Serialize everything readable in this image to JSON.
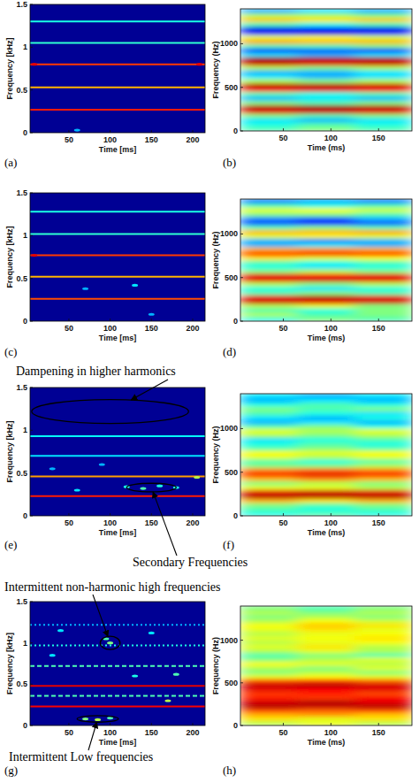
{
  "chart_data": [
    {
      "type": "spectrogram",
      "title": "(a)",
      "x_label": "Time [ms]",
      "y_label": "Frequency [kHz]",
      "xlim": [
        3,
        215
      ],
      "ylim": [
        0,
        1.5
      ],
      "xticks": [
        50,
        100,
        150,
        200
      ],
      "yticks": [
        0,
        0.5,
        1,
        1.5
      ],
      "clim": [
        0,
        1
      ],
      "background": 0.02,
      "bands": [
        {
          "frequency": 0.27,
          "intensity": 0.85
        },
        {
          "frequency": 0.53,
          "intensity": 0.7
        },
        {
          "frequency": 0.8,
          "intensity": 0.82
        },
        {
          "frequency": 1.05,
          "intensity": 0.42
        },
        {
          "frequency": 1.3,
          "intensity": 0.4
        }
      ],
      "spots": [
        {
          "time": 8,
          "frequency": 0.8,
          "intensity": 0.9
        },
        {
          "time": 208,
          "frequency": 0.8,
          "intensity": 0.9
        },
        {
          "time": 60,
          "frequency": 0.03,
          "intensity": 0.3
        }
      ]
    },
    {
      "type": "heatmap",
      "title": "(b)",
      "x_label": "Time (ms)",
      "y_label": "Frequency (Hz)",
      "xlim": [
        5,
        185
      ],
      "ylim": [
        0,
        1400
      ],
      "xticks": [
        50,
        100,
        150
      ],
      "yticks": [
        0,
        500,
        1000
      ],
      "clim": [
        0,
        1
      ],
      "x": [
        35,
        95,
        155
      ],
      "y": [
        25,
        75,
        125,
        175,
        225,
        275,
        325,
        375,
        425,
        475,
        525,
        575,
        625,
        675,
        725,
        775,
        825,
        875,
        925,
        975,
        1025,
        1075,
        1125,
        1175,
        1225,
        1275,
        1325,
        1375
      ],
      "cells": [
        [
          0.45,
          0.5,
          0.45
        ],
        [
          0.4,
          0.45,
          0.4
        ],
        [
          0.35,
          0.3,
          0.35
        ],
        [
          0.5,
          0.45,
          0.5
        ],
        [
          0.9,
          0.92,
          0.9
        ],
        [
          0.95,
          0.97,
          0.95
        ],
        [
          0.5,
          0.45,
          0.5
        ],
        [
          0.3,
          0.35,
          0.3
        ],
        [
          0.45,
          0.4,
          0.45
        ],
        [
          0.88,
          0.9,
          0.88
        ],
        [
          0.95,
          0.95,
          0.93
        ],
        [
          0.55,
          0.5,
          0.55
        ],
        [
          0.35,
          0.3,
          0.35
        ],
        [
          0.3,
          0.3,
          0.35
        ],
        [
          0.55,
          0.5,
          0.55
        ],
        [
          0.92,
          0.9,
          0.92
        ],
        [
          0.97,
          0.95,
          0.95
        ],
        [
          0.35,
          0.3,
          0.35
        ],
        [
          0.15,
          0.2,
          0.15
        ],
        [
          0.45,
          0.45,
          0.5
        ],
        [
          0.72,
          0.7,
          0.7
        ],
        [
          0.6,
          0.62,
          0.58
        ],
        [
          0.15,
          0.1,
          0.15
        ],
        [
          0.1,
          0.15,
          0.1
        ],
        [
          0.45,
          0.4,
          0.45
        ],
        [
          0.68,
          0.65,
          0.68
        ],
        [
          0.55,
          0.55,
          0.5
        ],
        [
          0.3,
          0.35,
          0.3
        ]
      ]
    },
    {
      "type": "spectrogram",
      "title": "(c)",
      "x_label": "Time [ms]",
      "y_label": "Frequency [kHz]",
      "xlim": [
        3,
        215
      ],
      "ylim": [
        0,
        1.5
      ],
      "xticks": [
        50,
        100,
        150,
        200
      ],
      "yticks": [
        0,
        0.5,
        1,
        1.5
      ],
      "clim": [
        0,
        1
      ],
      "background": 0.02,
      "bands": [
        {
          "frequency": 0.26,
          "intensity": 0.8
        },
        {
          "frequency": 0.52,
          "intensity": 0.7
        },
        {
          "frequency": 0.77,
          "intensity": 0.82
        },
        {
          "frequency": 1.02,
          "intensity": 0.42
        },
        {
          "frequency": 1.28,
          "intensity": 0.4
        }
      ],
      "spots": [
        {
          "time": 130,
          "frequency": 0.42,
          "intensity": 0.35
        },
        {
          "time": 70,
          "frequency": 0.38,
          "intensity": 0.3
        },
        {
          "time": 150,
          "frequency": 0.08,
          "intensity": 0.3
        },
        {
          "time": 8,
          "frequency": 0.77,
          "intensity": 0.9
        }
      ]
    },
    {
      "type": "heatmap",
      "title": "(d)",
      "x_label": "Time (ms)",
      "y_label": "Frequency (Hz)",
      "xlim": [
        5,
        185
      ],
      "ylim": [
        0,
        1400
      ],
      "xticks": [
        50,
        100,
        150
      ],
      "yticks": [
        0,
        500,
        1000
      ],
      "clim": [
        0,
        1
      ],
      "x": [
        35,
        95,
        155
      ],
      "y": [
        25,
        75,
        125,
        175,
        225,
        275,
        325,
        375,
        425,
        475,
        525,
        575,
        625,
        675,
        725,
        775,
        825,
        875,
        925,
        975,
        1025,
        1075,
        1125,
        1175,
        1225,
        1275,
        1325,
        1375
      ],
      "cells": [
        [
          0.4,
          0.5,
          0.45
        ],
        [
          0.55,
          0.45,
          0.5
        ],
        [
          0.45,
          0.4,
          0.5
        ],
        [
          0.55,
          0.6,
          0.5
        ],
        [
          0.92,
          0.9,
          0.92
        ],
        [
          0.9,
          0.95,
          0.9
        ],
        [
          0.45,
          0.5,
          0.45
        ],
        [
          0.4,
          0.35,
          0.4
        ],
        [
          0.55,
          0.5,
          0.55
        ],
        [
          0.9,
          0.92,
          0.9
        ],
        [
          0.9,
          0.88,
          0.9
        ],
        [
          0.5,
          0.55,
          0.5
        ],
        [
          0.4,
          0.35,
          0.4
        ],
        [
          0.45,
          0.4,
          0.45
        ],
        [
          0.65,
          0.6,
          0.62
        ],
        [
          0.85,
          0.88,
          0.85
        ],
        [
          0.7,
          0.72,
          0.7
        ],
        [
          0.3,
          0.35,
          0.3
        ],
        [
          0.3,
          0.25,
          0.3
        ],
        [
          0.6,
          0.62,
          0.6
        ],
        [
          0.7,
          0.7,
          0.72
        ],
        [
          0.45,
          0.5,
          0.45
        ],
        [
          0.2,
          0.15,
          0.2
        ],
        [
          0.25,
          0.2,
          0.3
        ],
        [
          0.5,
          0.5,
          0.45
        ],
        [
          0.6,
          0.62,
          0.58
        ],
        [
          0.45,
          0.4,
          0.45
        ],
        [
          0.25,
          0.3,
          0.25
        ]
      ]
    },
    {
      "type": "spectrogram",
      "title": "(e)",
      "x_label": "Time [ms]",
      "y_label": "Frequency [kHz]",
      "xlim": [
        3,
        215
      ],
      "ylim": [
        0,
        1.5
      ],
      "xticks": [
        50,
        100,
        150,
        200
      ],
      "yticks": [
        0,
        0.5,
        1,
        1.5
      ],
      "clim": [
        0,
        1
      ],
      "background": 0.02,
      "bands": [
        {
          "frequency": 0.23,
          "intensity": 0.85
        },
        {
          "frequency": 0.46,
          "intensity": 0.72
        },
        {
          "frequency": 0.7,
          "intensity": 0.35
        },
        {
          "frequency": 0.93,
          "intensity": 0.38
        }
      ],
      "spots": [
        {
          "time": 120,
          "frequency": 0.34,
          "intensity": 0.4
        },
        {
          "time": 140,
          "frequency": 0.32,
          "intensity": 0.45
        },
        {
          "time": 160,
          "frequency": 0.35,
          "intensity": 0.4
        },
        {
          "time": 180,
          "frequency": 0.33,
          "intensity": 0.4
        },
        {
          "time": 60,
          "frequency": 0.3,
          "intensity": 0.35
        },
        {
          "time": 90,
          "frequency": 0.6,
          "intensity": 0.3
        },
        {
          "time": 30,
          "frequency": 0.55,
          "intensity": 0.3
        },
        {
          "time": 205,
          "frequency": 0.45,
          "intensity": 0.55
        }
      ],
      "annotations": [
        {
          "text": "Dampening in higher harmonics",
          "center": [
            100,
            1.22
          ],
          "radius": [
            95,
            0.14
          ]
        },
        {
          "text": "Secondary Frequencies",
          "center": [
            150,
            0.33
          ],
          "radius": [
            30,
            0.05
          ]
        }
      ]
    },
    {
      "type": "heatmap",
      "title": "(f)",
      "x_label": "Time (ms)",
      "y_label": "Frequency (Hz)",
      "xlim": [
        5,
        185
      ],
      "ylim": [
        0,
        1400
      ],
      "xticks": [
        50,
        100,
        150
      ],
      "yticks": [
        0,
        500,
        1000
      ],
      "clim": [
        0,
        1
      ],
      "x": [
        35,
        95,
        155
      ],
      "y": [
        25,
        75,
        125,
        175,
        225,
        275,
        325,
        375,
        425,
        475,
        525,
        575,
        625,
        675,
        725,
        775,
        825,
        875,
        925,
        975,
        1025,
        1075,
        1125,
        1175,
        1225,
        1275,
        1325,
        1375
      ],
      "cells": [
        [
          0.4,
          0.45,
          0.4
        ],
        [
          0.45,
          0.4,
          0.45
        ],
        [
          0.5,
          0.45,
          0.5
        ],
        [
          0.7,
          0.65,
          0.7
        ],
        [
          0.95,
          0.95,
          0.95
        ],
        [
          0.9,
          0.92,
          0.9
        ],
        [
          0.6,
          0.6,
          0.55
        ],
        [
          0.5,
          0.55,
          0.5
        ],
        [
          0.7,
          0.75,
          0.7
        ],
        [
          0.88,
          0.9,
          0.88
        ],
        [
          0.75,
          0.78,
          0.75
        ],
        [
          0.5,
          0.5,
          0.55
        ],
        [
          0.45,
          0.4,
          0.45
        ],
        [
          0.6,
          0.55,
          0.6
        ],
        [
          0.62,
          0.6,
          0.62
        ],
        [
          0.45,
          0.5,
          0.45
        ],
        [
          0.4,
          0.45,
          0.4
        ],
        [
          0.35,
          0.4,
          0.45
        ],
        [
          0.55,
          0.5,
          0.55
        ],
        [
          0.6,
          0.55,
          0.6
        ],
        [
          0.45,
          0.5,
          0.4
        ],
        [
          0.3,
          0.35,
          0.3
        ],
        [
          0.35,
          0.3,
          0.4
        ],
        [
          0.45,
          0.4,
          0.35
        ],
        [
          0.5,
          0.45,
          0.5
        ],
        [
          0.4,
          0.45,
          0.4
        ],
        [
          0.3,
          0.35,
          0.3
        ],
        [
          0.35,
          0.3,
          0.35
        ]
      ]
    },
    {
      "type": "spectrogram",
      "title": "(g)",
      "x_label": "Time [ms]",
      "y_label": "Frequency [kHz]",
      "xlim": [
        3,
        215
      ],
      "ylim": [
        0,
        1.5
      ],
      "xticks": [
        50,
        100,
        150,
        200
      ],
      "yticks": [
        0,
        0.5,
        1,
        1.5
      ],
      "clim": [
        0,
        1
      ],
      "background": 0.02,
      "bands": [
        {
          "frequency": 0.23,
          "intensity": 0.88
        },
        {
          "frequency": 0.36,
          "intensity": 0.45,
          "line_style": "dashed"
        },
        {
          "frequency": 0.48,
          "intensity": 0.9
        },
        {
          "frequency": 0.72,
          "intensity": 0.45,
          "line_style": "dashed"
        },
        {
          "frequency": 0.97,
          "intensity": 0.4,
          "line_style": "dotted"
        },
        {
          "frequency": 1.22,
          "intensity": 0.3,
          "line_style": "dotted"
        }
      ],
      "spots": [
        {
          "time": 100,
          "frequency": 1.0,
          "intensity": 0.5
        },
        {
          "time": 95,
          "frequency": 1.05,
          "intensity": 0.45
        },
        {
          "time": 70,
          "frequency": 0.08,
          "intensity": 0.5
        },
        {
          "time": 85,
          "frequency": 0.07,
          "intensity": 0.55
        },
        {
          "time": 100,
          "frequency": 0.09,
          "intensity": 0.45
        },
        {
          "time": 150,
          "frequency": 1.12,
          "intensity": 0.35
        },
        {
          "time": 40,
          "frequency": 1.15,
          "intensity": 0.35
        },
        {
          "time": 180,
          "frequency": 0.62,
          "intensity": 0.45
        },
        {
          "time": 130,
          "frequency": 0.6,
          "intensity": 0.4
        },
        {
          "time": 170,
          "frequency": 0.3,
          "intensity": 0.55
        },
        {
          "time": 30,
          "frequency": 0.85,
          "intensity": 0.35
        }
      ],
      "annotations": [
        {
          "text": "Intermittent non-harmonic high frequencies",
          "center": [
            100,
            1.0
          ],
          "radius": [
            12,
            0.08
          ]
        },
        {
          "text": "Intermittent Low frequencies",
          "center": [
            85,
            0.08
          ],
          "radius": [
            25,
            0.04
          ]
        }
      ]
    },
    {
      "type": "heatmap",
      "title": "(h)",
      "x_label": "Time (ms)",
      "y_label": "Frequency (Hz)",
      "xlim": [
        5,
        185
      ],
      "ylim": [
        0,
        1400
      ],
      "xticks": [
        50,
        100,
        150
      ],
      "yticks": [
        0,
        500,
        1000
      ],
      "clim": [
        0,
        1
      ],
      "x": [
        35,
        95,
        155
      ],
      "y": [
        25,
        75,
        125,
        175,
        225,
        275,
        325,
        375,
        425,
        475,
        525,
        575,
        625,
        675,
        725,
        775,
        825,
        875,
        925,
        975,
        1025,
        1075,
        1125,
        1175,
        1225,
        1275,
        1325,
        1375
      ],
      "cells": [
        [
          0.55,
          0.6,
          0.55
        ],
        [
          0.65,
          0.6,
          0.65
        ],
        [
          0.7,
          0.72,
          0.68
        ],
        [
          0.8,
          0.78,
          0.8
        ],
        [
          0.95,
          0.93,
          0.95
        ],
        [
          0.92,
          0.95,
          0.9
        ],
        [
          0.85,
          0.82,
          0.88
        ],
        [
          0.82,
          0.85,
          0.8
        ],
        [
          0.9,
          0.88,
          0.9
        ],
        [
          0.93,
          0.95,
          0.92
        ],
        [
          0.8,
          0.82,
          0.78
        ],
        [
          0.6,
          0.62,
          0.6
        ],
        [
          0.5,
          0.55,
          0.5
        ],
        [
          0.55,
          0.5,
          0.6
        ],
        [
          0.62,
          0.6,
          0.55
        ],
        [
          0.5,
          0.55,
          0.6
        ],
        [
          0.45,
          0.5,
          0.45
        ],
        [
          0.55,
          0.6,
          0.55
        ],
        [
          0.6,
          0.65,
          0.55
        ],
        [
          0.55,
          0.6,
          0.62
        ],
        [
          0.6,
          0.62,
          0.65
        ],
        [
          0.55,
          0.6,
          0.62
        ],
        [
          0.6,
          0.65,
          0.6
        ],
        [
          0.62,
          0.68,
          0.65
        ],
        [
          0.55,
          0.62,
          0.58
        ],
        [
          0.5,
          0.55,
          0.5
        ],
        [
          0.55,
          0.5,
          0.55
        ],
        [
          0.5,
          0.45,
          0.5
        ]
      ]
    }
  ]
}
